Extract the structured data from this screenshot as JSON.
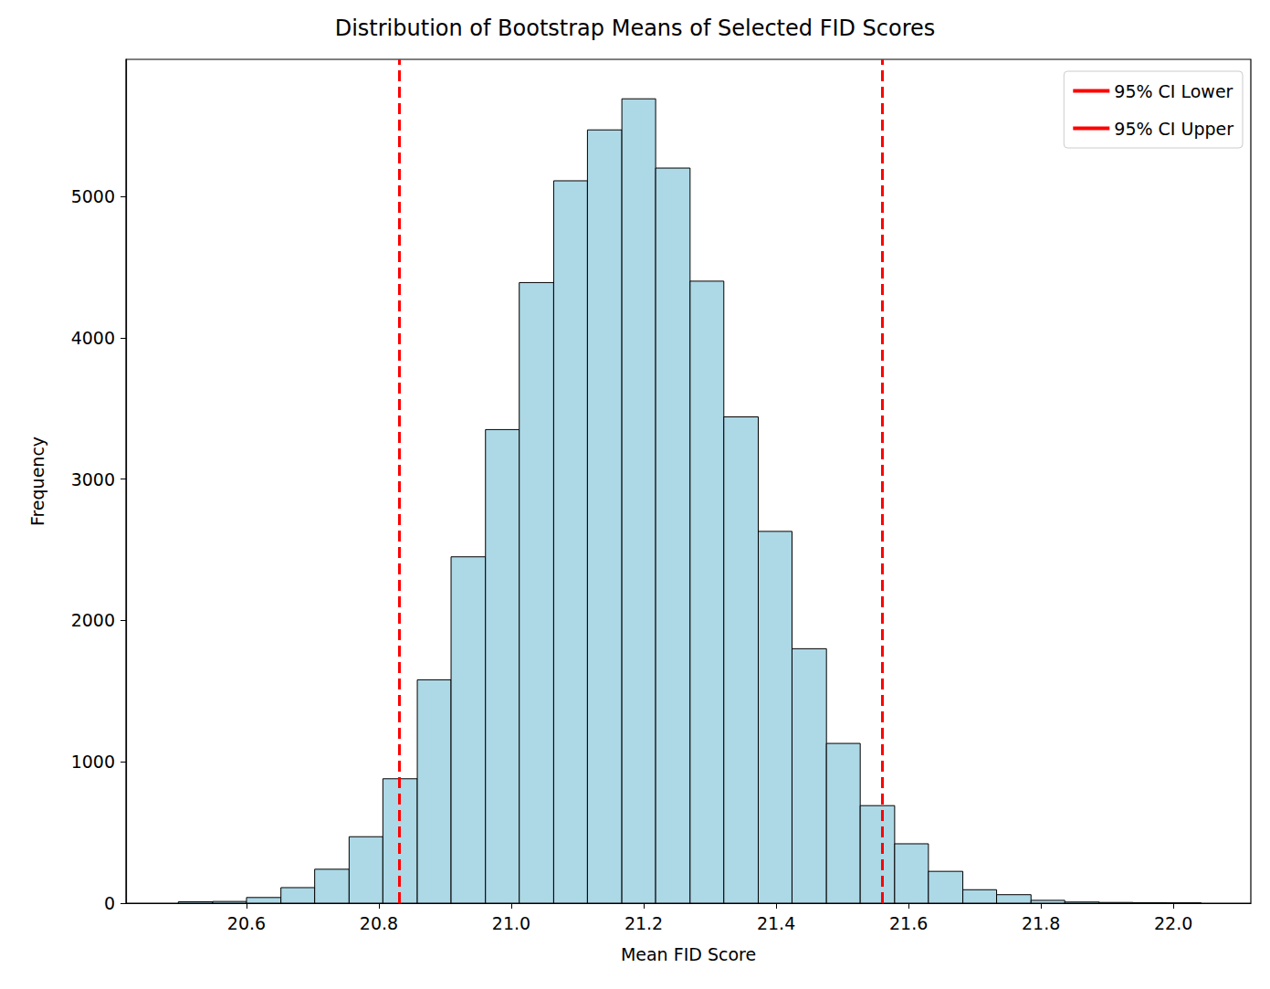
{
  "chart_data": {
    "type": "histogram",
    "title": "Distribution of Bootstrap Means of Selected FID Scores",
    "xlabel": "Mean FID Score",
    "ylabel": "Frequency",
    "bins": [
      20.497,
      20.549,
      20.6,
      20.652,
      20.703,
      20.755,
      20.806,
      20.858,
      20.909,
      20.961,
      21.012,
      21.064,
      21.115,
      21.167,
      21.218,
      21.27,
      21.321,
      21.373,
      21.424,
      21.476,
      21.527,
      21.579,
      21.63,
      21.682,
      21.733,
      21.785,
      21.836,
      21.888,
      21.939,
      21.991,
      22.042
    ],
    "counts": [
      10,
      12,
      40,
      110,
      240,
      470,
      880,
      1580,
      2450,
      3350,
      4390,
      5110,
      5470,
      5690,
      5200,
      4400,
      3440,
      2630,
      1800,
      1130,
      690,
      420,
      225,
      95,
      60,
      20,
      8,
      5,
      3,
      2
    ],
    "color": "#add8e6",
    "vlines": [
      {
        "name": "95% CI Lower",
        "x": 20.834,
        "color": "#ff0000",
        "line_style": "dashed"
      },
      {
        "name": "95% CI Upper",
        "x": 21.557,
        "color": "#ff0000",
        "line_style": "dashed"
      }
    ],
    "xlim": [
      20.418,
      22.117
    ],
    "ylim": [
      0,
      5969
    ],
    "xticks": [
      20.6,
      20.8,
      {
        "value": 21,
        "label": "21.0"
      },
      21.2,
      21.4,
      21.6,
      21.8,
      {
        "value": 22,
        "label": "22.0"
      }
    ],
    "yticks": [
      0,
      1000,
      2000,
      3000,
      4000,
      5000
    ],
    "legend": "upper right",
    "grid": false
  }
}
